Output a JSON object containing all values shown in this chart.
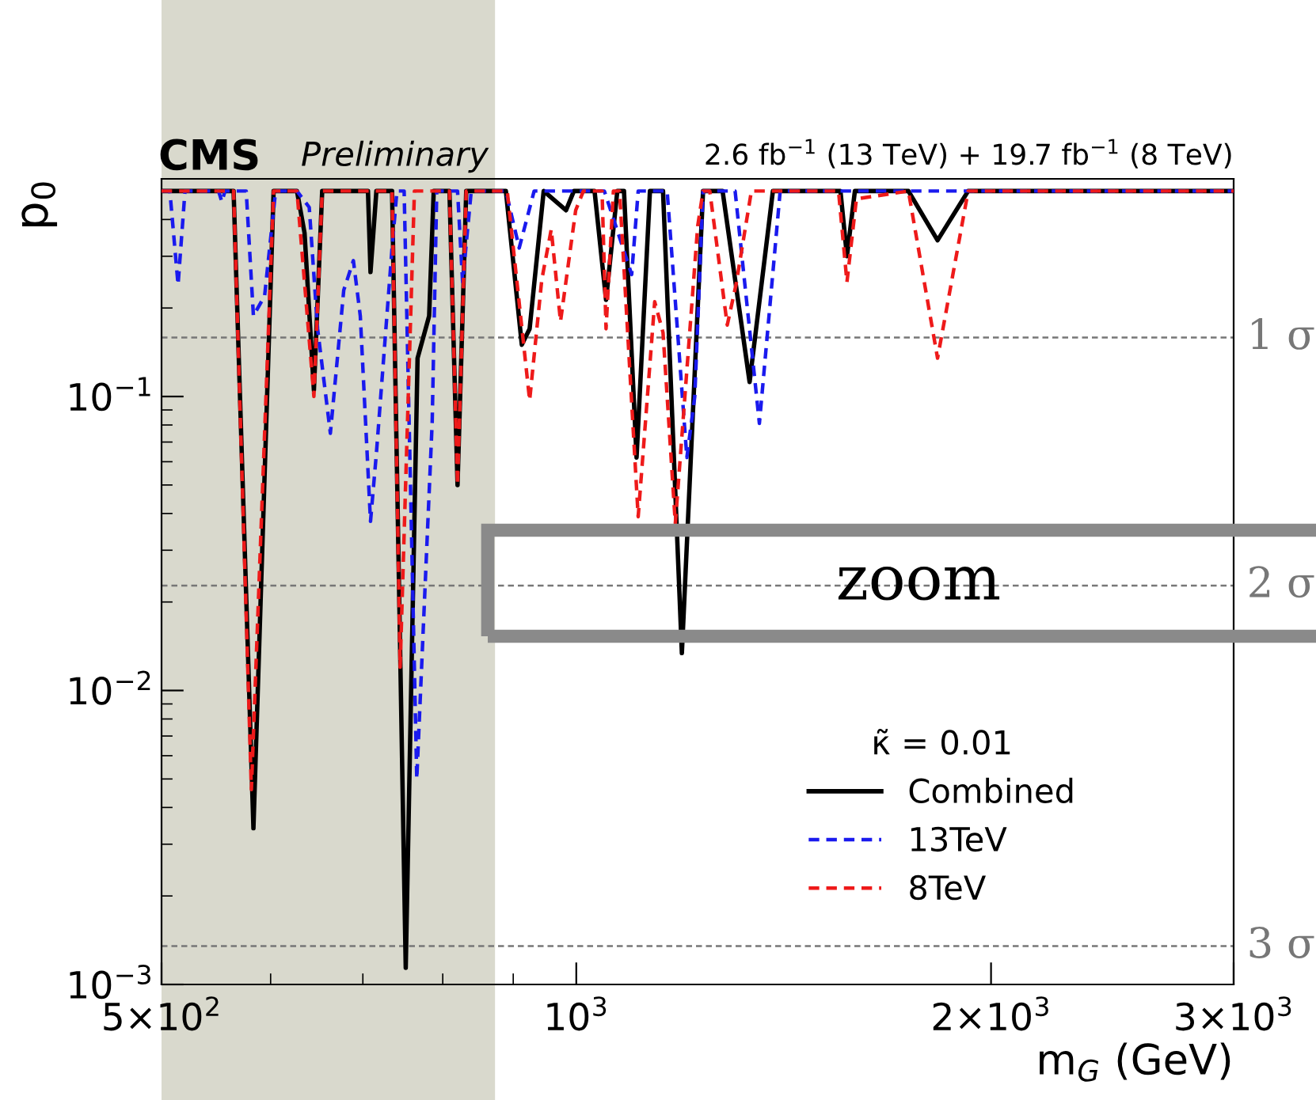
{
  "chart_data": {
    "type": "line",
    "title": "CMS",
    "subtitle": "Preliminary",
    "xlabel": "m$_{G}$ (GeV)",
    "ylabel": "p$_{0}$",
    "legend_title": "κ̃ = 0.01",
    "annotations": [
      "2.6 fb$^{−1}$ (13 TeV) + 19.7 fb$^{−1}$ (8 TeV)",
      "zoom"
    ],
    "log": "xy",
    "xlim": [
      500,
      3000
    ],
    "ylim": [
      0.001,
      0.55
    ],
    "xticks": [
      {
        "value": 500,
        "label": "5×10$^{2}$"
      },
      {
        "value": 1000,
        "label": "10$^{3}$"
      },
      {
        "value": 2000,
        "label": "2×10$^{3}$"
      },
      {
        "value": 3000,
        "label": "3×10$^{3}$"
      }
    ],
    "yticks": [
      {
        "value": 0.001,
        "label": "10$^{−3}$"
      },
      {
        "value": 0.01,
        "label": "10$^{−2}$"
      },
      {
        "value": 0.1,
        "label": "10$^{−1}$"
      }
    ],
    "grid": false,
    "legend": "bottom right",
    "marker": "none",
    "ref_lines": [
      {
        "axis": "y",
        "value": 0.1587,
        "label": "1 σ",
        "color": "#777777",
        "line_style": "dashed"
      },
      {
        "axis": "y",
        "value": 0.02275,
        "label": "2 σ",
        "color": "#777777",
        "line_style": "dashed"
      },
      {
        "axis": "y",
        "value": 0.00135,
        "label": "3 σ",
        "color": "#777777",
        "line_style": "dashed"
      }
    ],
    "bands": [
      {
        "axis": "x",
        "from": 500,
        "to": 873,
        "color": "#d9d9cd"
      }
    ],
    "series": [
      {
        "name": "Combined",
        "color": "#000000",
        "line_style": "solid",
        "x": [
          500,
          564,
          583,
          603,
          627,
          635,
          645,
          654,
          706,
          709,
          716,
          735,
          752,
          767,
          782,
          788,
          809,
          820,
          832,
          889,
          913,
          925,
          947,
          983,
          996,
          1031,
          1051,
          1071,
          1083,
          1106,
          1131,
          1156,
          1193,
          1236,
          1277,
          1336,
          1389,
          1555,
          1572,
          1593,
          1742,
          1829,
          1925,
          3000
        ],
        "values": [
          0.5,
          0.5,
          0.0034,
          0.5,
          0.5,
          0.36,
          0.105,
          0.5,
          0.5,
          0.265,
          0.5,
          0.5,
          0.00114,
          0.135,
          0.188,
          0.5,
          0.5,
          0.05,
          0.5,
          0.5,
          0.15,
          0.17,
          0.5,
          0.43,
          0.5,
          0.5,
          0.213,
          0.5,
          0.5,
          0.062,
          0.5,
          0.5,
          0.0134,
          0.5,
          0.5,
          0.112,
          0.5,
          0.5,
          0.3,
          0.5,
          0.5,
          0.34,
          0.5,
          0.5
        ]
      },
      {
        "name": "13TeV",
        "color": "#1a1aee",
        "line_style": "dashed",
        "x": [
          500,
          507,
          514,
          520,
          550,
          553,
          556,
          576,
          583,
          594,
          605,
          627,
          640,
          649,
          663,
          678,
          689,
          697,
          709,
          716,
          735,
          741,
          750,
          766,
          786,
          792,
          820,
          827,
          839,
          889,
          909,
          932,
          1048,
          1097,
          1109,
          1164,
          1203,
          1219,
          1236,
          1304,
          1358,
          1406,
          3000
        ],
        "values": [
          0.5,
          0.5,
          0.24,
          0.5,
          0.5,
          0.46,
          0.5,
          0.5,
          0.188,
          0.22,
          0.5,
          0.5,
          0.44,
          0.17,
          0.075,
          0.23,
          0.29,
          0.188,
          0.0376,
          0.064,
          0.32,
          0.5,
          0.5,
          0.005,
          0.082,
          0.5,
          0.5,
          0.245,
          0.5,
          0.5,
          0.32,
          0.5,
          0.5,
          0.26,
          0.5,
          0.5,
          0.062,
          0.1,
          0.5,
          0.5,
          0.081,
          0.5,
          0.5
        ]
      },
      {
        "name": "8TeV",
        "color": "#ee1a1a",
        "line_style": "dashed",
        "x": [
          500,
          564,
          581,
          603,
          627,
          645,
          654,
          735,
          745,
          763,
          809,
          820,
          832,
          891,
          925,
          944,
          959,
          974,
          999,
          1012,
          1044,
          1051,
          1064,
          1075,
          1109,
          1140,
          1156,
          1180,
          1225,
          1236,
          1250,
          1287,
          1306,
          1340,
          1550,
          1572,
          1597,
          1742,
          1829,
          1925,
          3000
        ],
        "values": [
          0.5,
          0.5,
          0.0046,
          0.5,
          0.5,
          0.1,
          0.5,
          0.5,
          0.012,
          0.5,
          0.5,
          0.05,
          0.5,
          0.5,
          0.097,
          0.25,
          0.37,
          0.18,
          0.43,
          0.5,
          0.5,
          0.17,
          0.5,
          0.5,
          0.039,
          0.21,
          0.165,
          0.037,
          0.38,
          0.5,
          0.5,
          0.175,
          0.24,
          0.5,
          0.5,
          0.245,
          0.47,
          0.5,
          0.135,
          0.5,
          0.5
        ]
      }
    ]
  }
}
